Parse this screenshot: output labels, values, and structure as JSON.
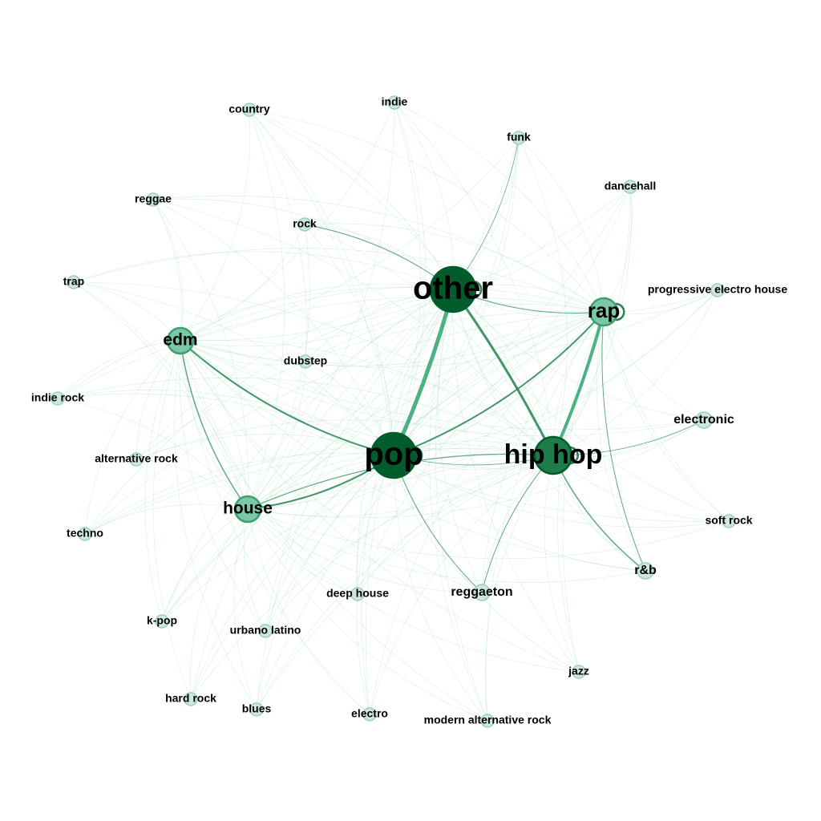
{
  "colors": {
    "edge": "#2e8b57",
    "edge_light": "#8fd3b0",
    "node_fill_light": "#cfe8dd",
    "node_stroke_light": "#9ccfb7",
    "node_fill_mid": "#7cc7a6",
    "node_stroke_mid": "#3f9d73",
    "node_fill_dark": "#1e7b4a",
    "node_fill_darkest": "#005c2a",
    "label": "#000000"
  },
  "graph": {
    "nodes": [
      {
        "id": "other",
        "label": "other",
        "weight": 10
      },
      {
        "id": "pop",
        "label": "pop",
        "weight": 10
      },
      {
        "id": "hip hop",
        "label": "hip hop",
        "weight": 8
      },
      {
        "id": "rap",
        "label": "rap",
        "weight": 5
      },
      {
        "id": "edm",
        "label": "edm",
        "weight": 4
      },
      {
        "id": "house",
        "label": "house",
        "weight": 4
      },
      {
        "id": "reggaeton",
        "label": "reggaeton",
        "weight": 2
      },
      {
        "id": "r&b",
        "label": "r&b",
        "weight": 2
      },
      {
        "id": "electronic",
        "label": "electronic",
        "weight": 2
      },
      {
        "id": "country",
        "label": "country",
        "weight": 1
      },
      {
        "id": "indie",
        "label": "indie",
        "weight": 1
      },
      {
        "id": "funk",
        "label": "funk",
        "weight": 1
      },
      {
        "id": "dancehall",
        "label": "dancehall",
        "weight": 1
      },
      {
        "id": "reggae",
        "label": "reggae",
        "weight": 1
      },
      {
        "id": "rock",
        "label": "rock",
        "weight": 1
      },
      {
        "id": "trap",
        "label": "trap",
        "weight": 1
      },
      {
        "id": "progressive electro house",
        "label": "progressive electro house",
        "weight": 1
      },
      {
        "id": "dubstep",
        "label": "dubstep",
        "weight": 1
      },
      {
        "id": "indie rock",
        "label": "indie rock",
        "weight": 1
      },
      {
        "id": "alternative rock",
        "label": "alternative rock",
        "weight": 1
      },
      {
        "id": "techno",
        "label": "techno",
        "weight": 1
      },
      {
        "id": "soft rock",
        "label": "soft rock",
        "weight": 1
      },
      {
        "id": "deep house",
        "label": "deep house",
        "weight": 1
      },
      {
        "id": "k-pop",
        "label": "k-pop",
        "weight": 1
      },
      {
        "id": "urbano latino",
        "label": "urbano latino",
        "weight": 1
      },
      {
        "id": "jazz",
        "label": "jazz",
        "weight": 1
      },
      {
        "id": "hard rock",
        "label": "hard rock",
        "weight": 1
      },
      {
        "id": "blues",
        "label": "blues",
        "weight": 1
      },
      {
        "id": "electro",
        "label": "electro",
        "weight": 1
      },
      {
        "id": "modern alternative rock",
        "label": "modern alternative rock",
        "weight": 1
      }
    ],
    "strong_edges": [
      {
        "source": "other",
        "target": "pop",
        "weight": 5
      },
      {
        "source": "other",
        "target": "hip hop",
        "weight": 3
      },
      {
        "source": "rap",
        "target": "hip hop",
        "weight": 4
      },
      {
        "source": "pop",
        "target": "rap",
        "weight": 2
      },
      {
        "source": "edm",
        "target": "pop",
        "weight": 2
      },
      {
        "source": "house",
        "target": "pop",
        "weight": 2
      },
      {
        "source": "edm",
        "target": "house",
        "weight": 1.5
      },
      {
        "source": "hip hop",
        "target": "house",
        "weight": 1.2
      },
      {
        "source": "hip hop",
        "target": "r&b",
        "weight": 1.5
      },
      {
        "source": "rap",
        "target": "r&b",
        "weight": 1
      },
      {
        "source": "pop",
        "target": "reggaeton",
        "weight": 1
      },
      {
        "source": "hip hop",
        "target": "reggaeton",
        "weight": 1
      },
      {
        "source": "other",
        "target": "rock",
        "weight": 1
      },
      {
        "source": "other",
        "target": "rap",
        "weight": 1
      },
      {
        "source": "other",
        "target": "funk",
        "weight": 0.8
      },
      {
        "source": "hip hop",
        "target": "electronic",
        "weight": 0.8
      },
      {
        "source": "pop",
        "target": "hip hop",
        "weight": 0.8
      }
    ],
    "self_loops": [
      "other",
      "pop",
      "hip hop",
      "rap"
    ]
  }
}
